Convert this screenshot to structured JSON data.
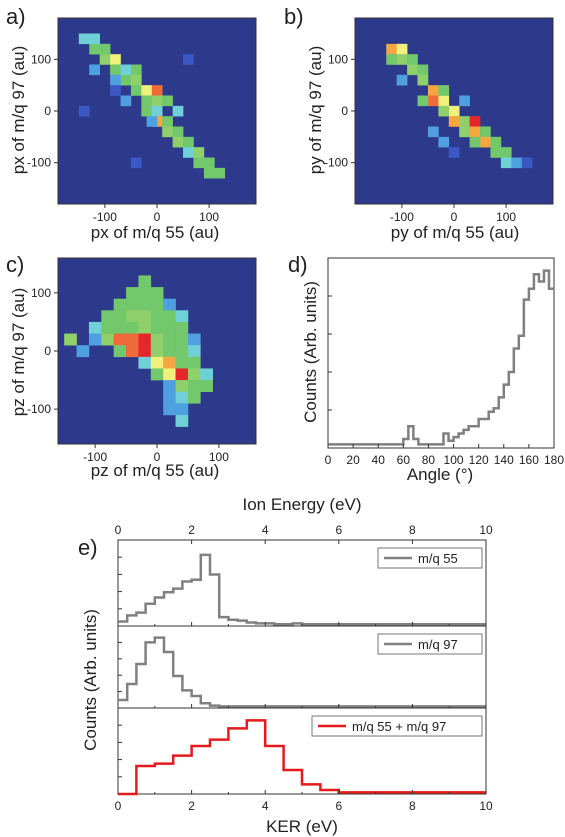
{
  "panels": {
    "a": "a)",
    "b": "b)",
    "c": "c)",
    "d": "d)",
    "e": "e)"
  },
  "colors": {
    "heatmap_scale": [
      "#2d3a8c",
      "#3b58c4",
      "#4fa0e0",
      "#6fd0d8",
      "#72c86a",
      "#8fd06a",
      "#f0f07a",
      "#f4a640",
      "#f06a3a",
      "#e5262a"
    ],
    "gray_line": "#808080",
    "red_line": "#e41a1c"
  },
  "chart_data": [
    {
      "id": "a",
      "type": "heatmap",
      "xlabel": "px of m/q 55 (au)",
      "ylabel": "px of m/q 97 (au)",
      "xlim": [
        -190,
        190
      ],
      "ylim": [
        -180,
        180
      ],
      "xticks": [
        -100,
        0,
        100
      ],
      "yticks": [
        -100,
        0,
        100
      ],
      "cell": 20,
      "cells": [
        [
          -140,
          140,
          3
        ],
        [
          -120,
          120,
          4
        ],
        [
          -120,
          140,
          3
        ],
        [
          -100,
          100,
          5
        ],
        [
          -100,
          120,
          4
        ],
        [
          -80,
          100,
          6
        ],
        [
          -80,
          80,
          4
        ],
        [
          -60,
          60,
          4
        ],
        [
          -60,
          80,
          3
        ],
        [
          -40,
          80,
          4
        ],
        [
          -40,
          60,
          5
        ],
        [
          -40,
          40,
          4
        ],
        [
          -20,
          40,
          6
        ],
        [
          -20,
          20,
          4
        ],
        [
          0,
          40,
          8
        ],
        [
          0,
          20,
          5
        ],
        [
          -20,
          0,
          4
        ],
        [
          0,
          0,
          3
        ],
        [
          20,
          20,
          4
        ],
        [
          0,
          -20,
          7
        ],
        [
          20,
          -20,
          4
        ],
        [
          20,
          -40,
          5
        ],
        [
          40,
          -40,
          4
        ],
        [
          40,
          -60,
          5
        ],
        [
          60,
          -60,
          4
        ],
        [
          60,
          -80,
          3
        ],
        [
          80,
          -80,
          5
        ],
        [
          80,
          -100,
          4
        ],
        [
          100,
          -100,
          4
        ],
        [
          100,
          -120,
          4
        ],
        [
          120,
          -120,
          4
        ],
        [
          40,
          0,
          3
        ],
        [
          -60,
          20,
          2
        ],
        [
          -80,
          60,
          2
        ],
        [
          -120,
          80,
          2
        ],
        [
          -80,
          40,
          1
        ],
        [
          -140,
          0,
          1
        ],
        [
          60,
          100,
          1
        ],
        [
          -40,
          -100,
          1
        ],
        [
          -10,
          -20,
          2
        ]
      ]
    },
    {
      "id": "b",
      "type": "heatmap",
      "xlabel": "py of m/q 55 (au)",
      "ylabel": "py of m/q 97 (au)",
      "xlim": [
        -190,
        190
      ],
      "ylim": [
        -180,
        180
      ],
      "xticks": [
        -100,
        0,
        100
      ],
      "yticks": [
        -100,
        0,
        100
      ],
      "cell": 20,
      "cells": [
        [
          -120,
          120,
          7
        ],
        [
          -100,
          120,
          6
        ],
        [
          -100,
          100,
          5
        ],
        [
          -120,
          100,
          4
        ],
        [
          -80,
          100,
          4
        ],
        [
          -80,
          80,
          5
        ],
        [
          -60,
          80,
          4
        ],
        [
          -60,
          60,
          5
        ],
        [
          -40,
          40,
          7
        ],
        [
          -40,
          20,
          8
        ],
        [
          -20,
          20,
          6
        ],
        [
          -60,
          20,
          4
        ],
        [
          0,
          0,
          6
        ],
        [
          -20,
          0,
          5
        ],
        [
          0,
          -20,
          7
        ],
        [
          20,
          -20,
          5
        ],
        [
          40,
          -20,
          10
        ],
        [
          40,
          -40,
          7
        ],
        [
          20,
          -40,
          5
        ],
        [
          60,
          -40,
          4
        ],
        [
          60,
          -60,
          7
        ],
        [
          80,
          -60,
          4
        ],
        [
          40,
          -60,
          4
        ],
        [
          80,
          -80,
          4
        ],
        [
          100,
          -80,
          4
        ],
        [
          100,
          -100,
          3
        ],
        [
          120,
          -100,
          2
        ],
        [
          -100,
          60,
          2
        ],
        [
          -20,
          40,
          4
        ],
        [
          20,
          20,
          2
        ],
        [
          -40,
          -40,
          2
        ],
        [
          0,
          -80,
          1
        ],
        [
          140,
          -100,
          1
        ],
        [
          -20,
          -60,
          2
        ]
      ]
    },
    {
      "id": "c",
      "type": "heatmap",
      "xlabel": "pz of m/q 55 (au)",
      "ylabel": "pz of m/q 97 (au)",
      "xlim": [
        -160,
        160
      ],
      "ylim": [
        -160,
        160
      ],
      "xticks": [
        -100,
        0,
        100
      ],
      "yticks": [
        -100,
        0,
        100
      ],
      "cell": 20,
      "cells": [
        [
          -20,
          120,
          4
        ],
        [
          -20,
          100,
          4
        ],
        [
          -40,
          100,
          4
        ],
        [
          0,
          100,
          4
        ],
        [
          -60,
          80,
          4
        ],
        [
          -40,
          80,
          4
        ],
        [
          -20,
          80,
          4
        ],
        [
          0,
          80,
          4
        ],
        [
          20,
          80,
          2
        ],
        [
          -80,
          60,
          4
        ],
        [
          -60,
          60,
          4
        ],
        [
          -40,
          60,
          5
        ],
        [
          -20,
          60,
          5
        ],
        [
          0,
          60,
          4
        ],
        [
          20,
          60,
          4
        ],
        [
          40,
          60,
          3
        ],
        [
          -100,
          40,
          3
        ],
        [
          -80,
          40,
          4
        ],
        [
          -60,
          40,
          4
        ],
        [
          -40,
          40,
          4
        ],
        [
          -20,
          40,
          5
        ],
        [
          0,
          40,
          4
        ],
        [
          20,
          40,
          4
        ],
        [
          40,
          40,
          4
        ],
        [
          -100,
          20,
          2
        ],
        [
          -80,
          20,
          5
        ],
        [
          -60,
          20,
          8
        ],
        [
          -40,
          20,
          8
        ],
        [
          -20,
          20,
          9
        ],
        [
          0,
          20,
          5
        ],
        [
          20,
          20,
          4
        ],
        [
          40,
          20,
          4
        ],
        [
          60,
          20,
          2
        ],
        [
          -60,
          0,
          4
        ],
        [
          -40,
          0,
          8
        ],
        [
          -20,
          0,
          10
        ],
        [
          0,
          0,
          5
        ],
        [
          20,
          0,
          4
        ],
        [
          40,
          0,
          4
        ],
        [
          60,
          0,
          3
        ],
        [
          -20,
          -20,
          3
        ],
        [
          0,
          -20,
          6
        ],
        [
          20,
          -20,
          7
        ],
        [
          40,
          -20,
          4
        ],
        [
          60,
          -20,
          4
        ],
        [
          0,
          -40,
          4
        ],
        [
          20,
          -40,
          6
        ],
        [
          40,
          -40,
          10
        ],
        [
          60,
          -40,
          5
        ],
        [
          80,
          -40,
          3
        ],
        [
          20,
          -60,
          2
        ],
        [
          40,
          -60,
          5
        ],
        [
          60,
          -60,
          4
        ],
        [
          80,
          -60,
          4
        ],
        [
          20,
          -80,
          2
        ],
        [
          40,
          -80,
          3
        ],
        [
          60,
          -80,
          4
        ],
        [
          20,
          -100,
          2
        ],
        [
          40,
          -100,
          2
        ],
        [
          40,
          -120,
          3
        ],
        [
          -140,
          20,
          5
        ],
        [
          -120,
          0,
          2
        ]
      ]
    },
    {
      "id": "d",
      "type": "line",
      "xlabel": "Angle (°)",
      "ylabel": "Counts (Arb. units)",
      "xlim": [
        0,
        180
      ],
      "ylim": [
        0,
        1.05
      ],
      "xticks": [
        0,
        20,
        40,
        60,
        80,
        100,
        120,
        140,
        160,
        180
      ],
      "x": [
        0,
        4,
        8,
        12,
        16,
        20,
        24,
        28,
        32,
        36,
        40,
        44,
        48,
        52,
        56,
        60,
        64,
        68,
        72,
        76,
        80,
        84,
        88,
        92,
        96,
        100,
        104,
        108,
        112,
        116,
        120,
        124,
        128,
        132,
        136,
        140,
        144,
        148,
        152,
        156,
        160,
        164,
        168,
        172,
        176
      ],
      "y": [
        0.02,
        0.02,
        0.02,
        0.02,
        0.02,
        0.02,
        0.02,
        0.02,
        0.02,
        0.02,
        0.02,
        0.02,
        0.02,
        0.02,
        0.02,
        0.05,
        0.12,
        0.05,
        0.02,
        0.02,
        0.02,
        0.02,
        0.02,
        0.08,
        0.04,
        0.06,
        0.08,
        0.1,
        0.12,
        0.12,
        0.16,
        0.16,
        0.2,
        0.22,
        0.28,
        0.35,
        0.42,
        0.55,
        0.62,
        0.82,
        0.88,
        0.96,
        0.92,
        0.98,
        0.88
      ]
    },
    {
      "id": "e-top",
      "type": "line",
      "legend": "m/q 55",
      "xlim": [
        0,
        10
      ],
      "x": [
        0,
        0.25,
        0.5,
        0.75,
        1,
        1.25,
        1.5,
        1.75,
        2,
        2.25,
        2.5,
        2.75,
        3,
        3.25,
        3.5,
        3.75,
        4,
        4.25,
        4.5,
        4.75,
        5,
        5.25,
        5.5,
        5.75,
        6,
        6.25,
        6.5,
        6.75,
        7,
        7.25,
        7.5,
        7.75,
        8,
        8.25,
        8.5,
        8.75,
        9,
        9.25,
        9.5,
        9.75
      ],
      "y": [
        0.05,
        0.12,
        0.15,
        0.25,
        0.32,
        0.38,
        0.42,
        0.5,
        0.52,
        0.8,
        0.58,
        0.1,
        0.07,
        0.06,
        0.04,
        0.03,
        0.03,
        0.02,
        0.02,
        0.03,
        0.02,
        0.02,
        0.02,
        0.02,
        0.02,
        0.02,
        0.02,
        0.02,
        0.02,
        0.02,
        0.02,
        0.02,
        0.02,
        0.02,
        0.02,
        0.02,
        0.02,
        0.02,
        0.02,
        0.02
      ]
    },
    {
      "id": "e-mid",
      "type": "line",
      "legend": "m/q 97",
      "xlim": [
        0,
        10
      ],
      "x": [
        0,
        0.25,
        0.5,
        0.75,
        1,
        1.25,
        1.5,
        1.75,
        2,
        2.25,
        2.5,
        2.75,
        3,
        3.25,
        3.5,
        3.75,
        4,
        4.25,
        4.5,
        4.75,
        5,
        5.25,
        5.5,
        5.75,
        6,
        6.25,
        6.5,
        6.75,
        7,
        7.25,
        7.5,
        7.75,
        8,
        8.25,
        8.5,
        8.75,
        9,
        9.25,
        9.5,
        9.75
      ],
      "y": [
        0.1,
        0.3,
        0.55,
        0.82,
        0.88,
        0.7,
        0.4,
        0.22,
        0.15,
        0.06,
        0.03,
        0.02,
        0.02,
        0.02,
        0.02,
        0.02,
        0.02,
        0.02,
        0.02,
        0.02,
        0.02,
        0.02,
        0.02,
        0.02,
        0.02,
        0.02,
        0.02,
        0.02,
        0.02,
        0.02,
        0.02,
        0.02,
        0.02,
        0.02,
        0.02,
        0.02,
        0.02,
        0.02,
        0.02,
        0.02
      ]
    },
    {
      "id": "e-bot",
      "type": "line",
      "legend": "m/q 55 + m/q 97",
      "xlim": [
        0,
        10
      ],
      "x": [
        0,
        0.5,
        1,
        1.5,
        2,
        2.5,
        3,
        3.5,
        4,
        4.5,
        5,
        5.5,
        6,
        6.5,
        7,
        7.5,
        8,
        8.5,
        9,
        9.5
      ],
      "y": [
        0,
        0.35,
        0.38,
        0.48,
        0.6,
        0.68,
        0.82,
        0.92,
        0.6,
        0.3,
        0.12,
        0.05,
        0.02,
        0.02,
        0.02,
        0.02,
        0.02,
        0.02,
        0.02,
        0.02
      ]
    }
  ],
  "panel_e_axes": {
    "top_axis_label": "Ion Energy (eV)",
    "top_ticks": [
      0,
      2,
      4,
      6,
      8,
      10
    ],
    "bottom_axis_label": "KER (eV)",
    "bottom_ticks": [
      0,
      2,
      4,
      6,
      8,
      10
    ],
    "ylabel": "Counts (Arb. units)"
  }
}
